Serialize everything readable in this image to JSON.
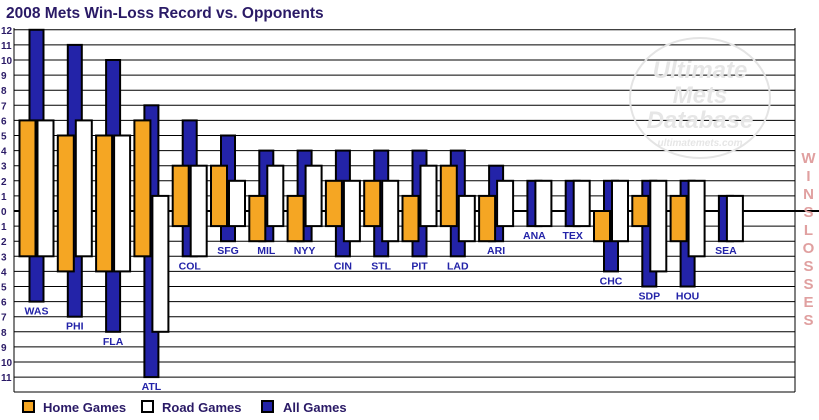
{
  "title": "2008 Mets Win-Loss Record vs. Opponents",
  "watermark": {
    "line1": "Ultimate",
    "line2": "Mets",
    "line3": "Database",
    "url": "ultimatemets.com"
  },
  "side_labels": {
    "wins": "WINS",
    "losses": "LOSSES"
  },
  "legend": [
    {
      "label": "Home Games",
      "color": "#f5a623"
    },
    {
      "label": "Road Games",
      "color": "#ffffff"
    },
    {
      "label": "All Games",
      "color": "#2323a8"
    }
  ],
  "chart_data": {
    "type": "bar",
    "title": "2008 Mets Win-Loss Record vs. Opponents",
    "y_wins_ticks": [
      "12",
      "11",
      "10",
      "9",
      "8",
      "7",
      "6",
      "5",
      "4",
      "3",
      "2",
      "1",
      "0"
    ],
    "y_losses_ticks": [
      "1",
      "2",
      "3",
      "4",
      "5",
      "6",
      "7",
      "8",
      "9",
      "10",
      "11"
    ],
    "ylim": [
      -12,
      12
    ],
    "grid": true,
    "legend_position": "bottom-left",
    "colors": {
      "home": "#f5a623",
      "road": "#ffffff",
      "all": "#2323a8"
    },
    "categories": [
      "WAS",
      "PHI",
      "FLA",
      "ATL",
      "COL",
      "SFG",
      "MIL",
      "NYY",
      "CIN",
      "STL",
      "PIT",
      "LAD",
      "ARI",
      "ANA",
      "TEX",
      "CHC",
      "SDP",
      "HOU",
      "SEA"
    ],
    "series": [
      {
        "name": "Home Games",
        "wins": [
          6,
          5,
          5,
          6,
          3,
          3,
          1,
          1,
          2,
          2,
          1,
          3,
          1,
          0,
          0,
          0,
          1,
          1,
          0
        ],
        "losses": [
          3,
          4,
          4,
          3,
          1,
          1,
          2,
          2,
          1,
          1,
          2,
          1,
          2,
          0,
          0,
          2,
          1,
          2,
          0
        ]
      },
      {
        "name": "Road Games",
        "wins": [
          6,
          6,
          5,
          1,
          3,
          2,
          3,
          3,
          2,
          2,
          3,
          1,
          2,
          2,
          2,
          2,
          2,
          2,
          1
        ],
        "losses": [
          3,
          3,
          4,
          8,
          3,
          1,
          1,
          1,
          2,
          2,
          1,
          2,
          1,
          1,
          1,
          2,
          4,
          3,
          2
        ]
      },
      {
        "name": "All Games",
        "wins": [
          12,
          11,
          10,
          7,
          6,
          5,
          4,
          4,
          4,
          4,
          4,
          4,
          3,
          2,
          2,
          2,
          2,
          2,
          1
        ],
        "losses": [
          6,
          7,
          8,
          11,
          3,
          2,
          2,
          2,
          3,
          3,
          3,
          3,
          2,
          1,
          1,
          4,
          5,
          5,
          2
        ]
      }
    ]
  }
}
